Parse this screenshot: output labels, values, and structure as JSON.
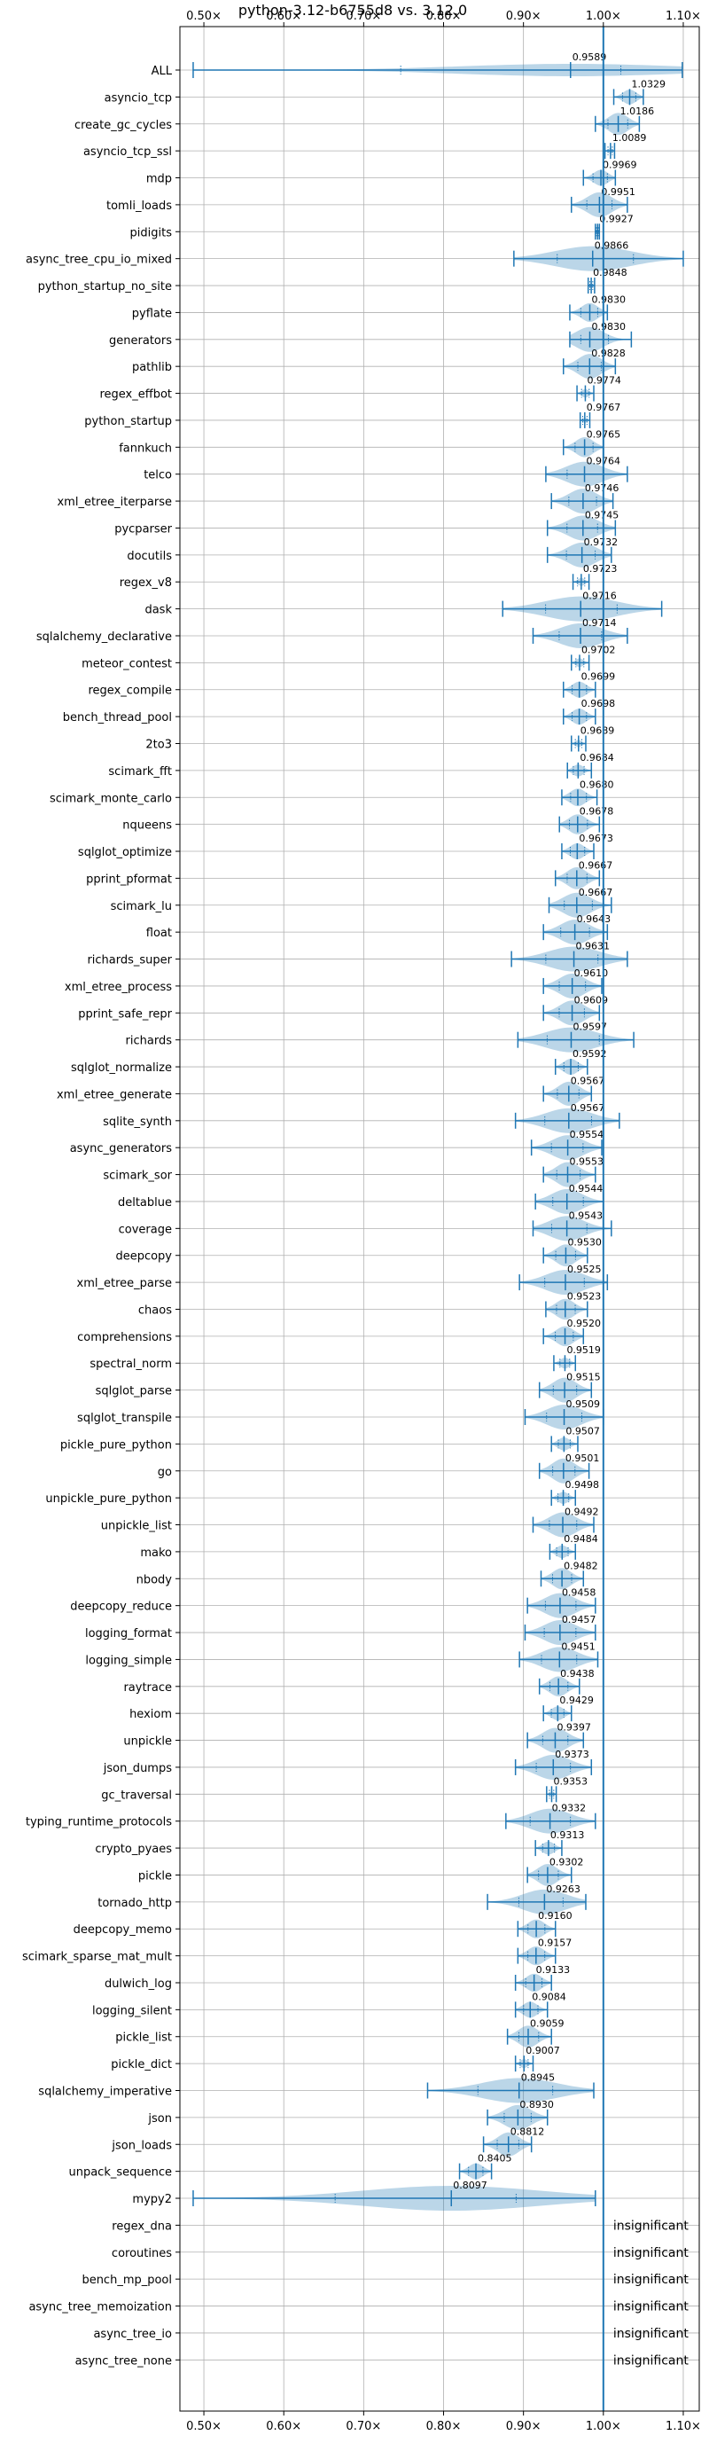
{
  "chart_data": {
    "type": "violin",
    "title": "python-3.12-b6755d8 vs. 3.12.0",
    "xlim": [
      0.47,
      1.12
    ],
    "xticks": [
      0.5,
      0.6,
      0.7,
      0.8,
      0.9,
      1.0,
      1.1
    ],
    "xtick_labels": [
      "0.50×",
      "0.60×",
      "0.70×",
      "0.80×",
      "0.90×",
      "1.00×",
      "1.10×"
    ],
    "xtick_position": "top-and-bottom",
    "reference_line": 1.0,
    "grid": true,
    "colors": {
      "violin": "#1f77b4",
      "reference": "#1f77b4"
    },
    "benchmarks": [
      {
        "name": "ALL",
        "value": 0.9589,
        "label": "0.9589",
        "min": 0.4866,
        "max": 1.0988
      },
      {
        "name": "asyncio_tcp",
        "value": 1.0329,
        "label": "1.0329",
        "min": 1.013,
        "max": 1.05
      },
      {
        "name": "create_gc_cycles",
        "value": 1.0186,
        "label": "1.0186",
        "min": 0.99,
        "max": 1.045
      },
      {
        "name": "asyncio_tcp_ssl",
        "value": 1.0089,
        "label": "1.0089",
        "min": 1.002,
        "max": 1.014
      },
      {
        "name": "mdp",
        "value": 0.9969,
        "label": "0.9969",
        "min": 0.975,
        "max": 1.015
      },
      {
        "name": "tomli_loads",
        "value": 0.9951,
        "label": "0.9951",
        "min": 0.96,
        "max": 1.03
      },
      {
        "name": "pidigits",
        "value": 0.9927,
        "label": "0.9927",
        "min": 0.99,
        "max": 0.995
      },
      {
        "name": "async_tree_cpu_io_mixed",
        "value": 0.9866,
        "label": "0.9866",
        "min": 0.888,
        "max": 1.1
      },
      {
        "name": "python_startup_no_site",
        "value": 0.9848,
        "label": "0.9848",
        "min": 0.981,
        "max": 0.989
      },
      {
        "name": "pyflate",
        "value": 0.983,
        "label": "0.9830",
        "min": 0.958,
        "max": 1.005
      },
      {
        "name": "generators",
        "value": 0.983,
        "label": "0.9830",
        "min": 0.958,
        "max": 1.035
      },
      {
        "name": "pathlib",
        "value": 0.9828,
        "label": "0.9828",
        "min": 0.95,
        "max": 1.015
      },
      {
        "name": "regex_effbot",
        "value": 0.9774,
        "label": "0.9774",
        "min": 0.967,
        "max": 0.988
      },
      {
        "name": "python_startup",
        "value": 0.9767,
        "label": "0.9767",
        "min": 0.971,
        "max": 0.983
      },
      {
        "name": "fannkuch",
        "value": 0.9765,
        "label": "0.9765",
        "min": 0.95,
        "max": 1.0
      },
      {
        "name": "telco",
        "value": 0.9764,
        "label": "0.9764",
        "min": 0.928,
        "max": 1.03
      },
      {
        "name": "xml_etree_iterparse",
        "value": 0.9746,
        "label": "0.9746",
        "min": 0.935,
        "max": 1.012
      },
      {
        "name": "pycparser",
        "value": 0.9745,
        "label": "0.9745",
        "min": 0.93,
        "max": 1.015
      },
      {
        "name": "docutils",
        "value": 0.9732,
        "label": "0.9732",
        "min": 0.93,
        "max": 1.01
      },
      {
        "name": "regex_v8",
        "value": 0.9723,
        "label": "0.9723",
        "min": 0.962,
        "max": 0.982
      },
      {
        "name": "dask",
        "value": 0.9716,
        "label": "0.9716",
        "min": 0.874,
        "max": 1.073
      },
      {
        "name": "sqlalchemy_declarative",
        "value": 0.9714,
        "label": "0.9714",
        "min": 0.912,
        "max": 1.03
      },
      {
        "name": "meteor_contest",
        "value": 0.9702,
        "label": "0.9702",
        "min": 0.96,
        "max": 0.982
      },
      {
        "name": "regex_compile",
        "value": 0.9699,
        "label": "0.9699",
        "min": 0.95,
        "max": 0.99
      },
      {
        "name": "bench_thread_pool",
        "value": 0.9698,
        "label": "0.9698",
        "min": 0.95,
        "max": 0.99
      },
      {
        "name": "2to3",
        "value": 0.9689,
        "label": "0.9689",
        "min": 0.96,
        "max": 0.978
      },
      {
        "name": "scimark_fft",
        "value": 0.9684,
        "label": "0.9684",
        "min": 0.955,
        "max": 0.985
      },
      {
        "name": "scimark_monte_carlo",
        "value": 0.968,
        "label": "0.9680",
        "min": 0.948,
        "max": 0.992
      },
      {
        "name": "nqueens",
        "value": 0.9678,
        "label": "0.9678",
        "min": 0.945,
        "max": 0.995
      },
      {
        "name": "sqlglot_optimize",
        "value": 0.9673,
        "label": "0.9673",
        "min": 0.948,
        "max": 0.988
      },
      {
        "name": "pprint_pformat",
        "value": 0.9667,
        "label": "0.9667",
        "min": 0.94,
        "max": 0.995
      },
      {
        "name": "scimark_lu",
        "value": 0.9667,
        "label": "0.9667",
        "min": 0.932,
        "max": 1.01
      },
      {
        "name": "float",
        "value": 0.9643,
        "label": "0.9643",
        "min": 0.925,
        "max": 1.005
      },
      {
        "name": "richards_super",
        "value": 0.9631,
        "label": "0.9631",
        "min": 0.885,
        "max": 1.03
      },
      {
        "name": "xml_etree_process",
        "value": 0.961,
        "label": "0.9610",
        "min": 0.925,
        "max": 0.998
      },
      {
        "name": "pprint_safe_repr",
        "value": 0.9609,
        "label": "0.9609",
        "min": 0.925,
        "max": 0.995
      },
      {
        "name": "richards",
        "value": 0.9597,
        "label": "0.9597",
        "min": 0.893,
        "max": 1.038
      },
      {
        "name": "sqlglot_normalize",
        "value": 0.9592,
        "label": "0.9592",
        "min": 0.94,
        "max": 0.98
      },
      {
        "name": "xml_etree_generate",
        "value": 0.9567,
        "label": "0.9567",
        "min": 0.925,
        "max": 0.985
      },
      {
        "name": "sqlite_synth",
        "value": 0.9567,
        "label": "0.9567",
        "min": 0.89,
        "max": 1.02
      },
      {
        "name": "async_generators",
        "value": 0.9554,
        "label": "0.9554",
        "min": 0.91,
        "max": 0.998
      },
      {
        "name": "scimark_sor",
        "value": 0.9553,
        "label": "0.9553",
        "min": 0.925,
        "max": 0.99
      },
      {
        "name": "deltablue",
        "value": 0.9544,
        "label": "0.9544",
        "min": 0.915,
        "max": 1.0
      },
      {
        "name": "coverage",
        "value": 0.9543,
        "label": "0.9543",
        "min": 0.912,
        "max": 1.01
      },
      {
        "name": "deepcopy",
        "value": 0.953,
        "label": "0.9530",
        "min": 0.925,
        "max": 0.98
      },
      {
        "name": "xml_etree_parse",
        "value": 0.9525,
        "label": "0.9525",
        "min": 0.895,
        "max": 1.005
      },
      {
        "name": "chaos",
        "value": 0.9523,
        "label": "0.9523",
        "min": 0.928,
        "max": 0.98
      },
      {
        "name": "comprehensions",
        "value": 0.952,
        "label": "0.9520",
        "min": 0.925,
        "max": 0.975
      },
      {
        "name": "spectral_norm",
        "value": 0.9519,
        "label": "0.9519",
        "min": 0.938,
        "max": 0.965
      },
      {
        "name": "sqlglot_parse",
        "value": 0.9515,
        "label": "0.9515",
        "min": 0.92,
        "max": 0.985
      },
      {
        "name": "sqlglot_transpile",
        "value": 0.9509,
        "label": "0.9509",
        "min": 0.902,
        "max": 1.0
      },
      {
        "name": "pickle_pure_python",
        "value": 0.9507,
        "label": "0.9507",
        "min": 0.935,
        "max": 0.968
      },
      {
        "name": "go",
        "value": 0.9501,
        "label": "0.9501",
        "min": 0.92,
        "max": 0.982
      },
      {
        "name": "unpickle_pure_python",
        "value": 0.9498,
        "label": "0.9498",
        "min": 0.935,
        "max": 0.965
      },
      {
        "name": "unpickle_list",
        "value": 0.9492,
        "label": "0.9492",
        "min": 0.912,
        "max": 0.988
      },
      {
        "name": "mako",
        "value": 0.9484,
        "label": "0.9484",
        "min": 0.933,
        "max": 0.965
      },
      {
        "name": "nbody",
        "value": 0.9482,
        "label": "0.9482",
        "min": 0.922,
        "max": 0.975
      },
      {
        "name": "deepcopy_reduce",
        "value": 0.9458,
        "label": "0.9458",
        "min": 0.905,
        "max": 0.99
      },
      {
        "name": "logging_format",
        "value": 0.9457,
        "label": "0.9457",
        "min": 0.902,
        "max": 0.99
      },
      {
        "name": "logging_simple",
        "value": 0.9451,
        "label": "0.9451",
        "min": 0.895,
        "max": 0.993
      },
      {
        "name": "raytrace",
        "value": 0.9438,
        "label": "0.9438",
        "min": 0.92,
        "max": 0.97
      },
      {
        "name": "hexiom",
        "value": 0.9429,
        "label": "0.9429",
        "min": 0.925,
        "max": 0.96
      },
      {
        "name": "unpickle",
        "value": 0.9397,
        "label": "0.9397",
        "min": 0.905,
        "max": 0.975
      },
      {
        "name": "json_dumps",
        "value": 0.9373,
        "label": "0.9373",
        "min": 0.89,
        "max": 0.985
      },
      {
        "name": "gc_traversal",
        "value": 0.9353,
        "label": "0.9353",
        "min": 0.929,
        "max": 0.941
      },
      {
        "name": "typing_runtime_protocols",
        "value": 0.9332,
        "label": "0.9332",
        "min": 0.878,
        "max": 0.99
      },
      {
        "name": "crypto_pyaes",
        "value": 0.9313,
        "label": "0.9313",
        "min": 0.915,
        "max": 0.948
      },
      {
        "name": "pickle",
        "value": 0.9302,
        "label": "0.9302",
        "min": 0.905,
        "max": 0.96
      },
      {
        "name": "tornado_http",
        "value": 0.9263,
        "label": "0.9263",
        "min": 0.855,
        "max": 0.978
      },
      {
        "name": "deepcopy_memo",
        "value": 0.916,
        "label": "0.9160",
        "min": 0.893,
        "max": 0.94
      },
      {
        "name": "scimark_sparse_mat_mult",
        "value": 0.9157,
        "label": "0.9157",
        "min": 0.893,
        "max": 0.94
      },
      {
        "name": "dulwich_log",
        "value": 0.9133,
        "label": "0.9133",
        "min": 0.89,
        "max": 0.935
      },
      {
        "name": "logging_silent",
        "value": 0.9084,
        "label": "0.9084",
        "min": 0.89,
        "max": 0.93
      },
      {
        "name": "pickle_list",
        "value": 0.9059,
        "label": "0.9059",
        "min": 0.88,
        "max": 0.935
      },
      {
        "name": "pickle_dict",
        "value": 0.9007,
        "label": "0.9007",
        "min": 0.89,
        "max": 0.912
      },
      {
        "name": "sqlalchemy_imperative",
        "value": 0.8945,
        "label": "0.8945",
        "min": 0.78,
        "max": 0.988
      },
      {
        "name": "json",
        "value": 0.893,
        "label": "0.8930",
        "min": 0.855,
        "max": 0.93
      },
      {
        "name": "json_loads",
        "value": 0.8812,
        "label": "0.8812",
        "min": 0.85,
        "max": 0.91
      },
      {
        "name": "unpack_sequence",
        "value": 0.8405,
        "label": "0.8405",
        "min": 0.82,
        "max": 0.86
      },
      {
        "name": "mypy2",
        "value": 0.8097,
        "label": "0.8097",
        "min": 0.4866,
        "max": 0.99
      },
      {
        "name": "regex_dna",
        "value": null,
        "label": "insignificant"
      },
      {
        "name": "coroutines",
        "value": null,
        "label": "insignificant"
      },
      {
        "name": "bench_mp_pool",
        "value": null,
        "label": "insignificant"
      },
      {
        "name": "async_tree_memoization",
        "value": null,
        "label": "insignificant"
      },
      {
        "name": "async_tree_io",
        "value": null,
        "label": "insignificant"
      },
      {
        "name": "async_tree_none",
        "value": null,
        "label": "insignificant"
      }
    ]
  }
}
